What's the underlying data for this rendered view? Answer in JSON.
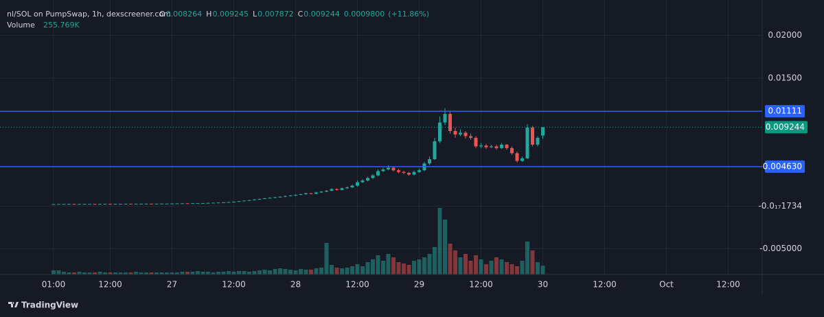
{
  "chart_data": {
    "type": "candlestick",
    "title": "nl/SOL on PumpSwap, 1h, dexscreener.com",
    "legend": [
      {
        "key": "O",
        "value": 0.008264
      },
      {
        "key": "H",
        "value": 0.009245
      },
      {
        "key": "L",
        "value": 0.007872
      },
      {
        "key": "C",
        "value": 0.009244
      }
    ],
    "change": {
      "value": 0.00098,
      "label": "0.0009800",
      "percent": "(+11.86%)"
    },
    "volume_legend": {
      "name": "Volume",
      "value": 255769,
      "label": "255.769K"
    },
    "x_labels": [
      "01:00",
      "12:00",
      "27",
      "12:00",
      "28",
      "12:00",
      "29",
      "12:00",
      "30",
      "12:00",
      "Oct",
      "12:00"
    ],
    "open": [
      0.00024,
      0.00024,
      0.00025,
      0.00025,
      0.00026,
      0.00025,
      0.00025,
      0.00026,
      0.00026,
      0.00025,
      0.00026,
      0.00027,
      0.00026,
      0.00027,
      0.00027,
      0.00028,
      0.00027,
      0.00028,
      0.00028,
      0.00029,
      0.00028,
      0.00029,
      0.0003,
      0.0003,
      0.00031,
      0.00032,
      0.00033,
      0.00032,
      0.00034,
      0.00035,
      0.00036,
      0.00038,
      0.0004,
      0.00042,
      0.00045,
      0.00048,
      0.00052,
      0.00058,
      0.00065,
      0.0007,
      0.00078,
      0.00085,
      0.00092,
      0.00098,
      0.00105,
      0.0011,
      0.00118,
      0.00125,
      0.00132,
      0.0014,
      0.0015,
      0.00145,
      0.0016,
      0.0017,
      0.0018,
      0.002,
      0.0019,
      0.0021,
      0.0022,
      0.0024,
      0.0028,
      0.003,
      0.0033,
      0.0036,
      0.0041,
      0.0043,
      0.0045,
      0.0042,
      0.004,
      0.0039,
      0.0037,
      0.004,
      0.0042,
      0.005,
      0.0055,
      0.0076,
      0.0098,
      0.0108,
      0.0088,
      0.0084,
      0.0086,
      0.0082,
      0.008,
      0.007,
      0.0071,
      0.0069,
      0.007,
      0.0068,
      0.0072,
      0.0068,
      0.0062,
      0.0053,
      0.0056,
      0.0092,
      0.0072,
      0.008264
    ],
    "high": [
      0.00025,
      0.00026,
      0.00026,
      0.00027,
      0.00027,
      0.00026,
      0.00027,
      0.00027,
      0.00027,
      0.00027,
      0.00028,
      0.00028,
      0.00028,
      0.00028,
      0.00029,
      0.00029,
      0.00029,
      0.00029,
      0.0003,
      0.0003,
      0.0003,
      0.00031,
      0.00031,
      0.00032,
      0.00033,
      0.00034,
      0.00034,
      0.00035,
      0.00036,
      0.00037,
      0.0004,
      0.00042,
      0.00044,
      0.00047,
      0.0005,
      0.00055,
      0.00061,
      0.00068,
      0.00074,
      0.00082,
      0.0009,
      0.00097,
      0.00104,
      0.0011,
      0.00116,
      0.00124,
      0.00131,
      0.00139,
      0.00147,
      0.00158,
      0.00156,
      0.00168,
      0.00178,
      0.00189,
      0.0021,
      0.00208,
      0.0022,
      0.00231,
      0.00252,
      0.003,
      0.00315,
      0.00345,
      0.00375,
      0.0043,
      0.0045,
      0.0048,
      0.0047,
      0.00435,
      0.00415,
      0.004,
      0.00415,
      0.0044,
      0.0052,
      0.0058,
      0.008,
      0.0105,
      0.0115,
      0.0112,
      0.0092,
      0.009,
      0.0088,
      0.0085,
      0.0082,
      0.0074,
      0.0073,
      0.0072,
      0.0072,
      0.0074,
      0.0073,
      0.007,
      0.0064,
      0.0058,
      0.0096,
      0.0094,
      0.0082,
      0.009245
    ],
    "low": [
      0.00023,
      0.00023,
      0.00024,
      0.00024,
      0.00024,
      0.00024,
      0.00024,
      0.00025,
      0.00024,
      0.00024,
      0.00025,
      0.00025,
      0.00025,
      0.00026,
      0.00026,
      0.00026,
      0.00026,
      0.00027,
      0.00027,
      0.00027,
      0.00027,
      0.00028,
      0.00029,
      0.00029,
      0.0003,
      0.00031,
      0.00031,
      0.00031,
      0.00033,
      0.00034,
      0.00035,
      0.00037,
      0.00039,
      0.00041,
      0.00043,
      0.00046,
      0.0005,
      0.00056,
      0.00063,
      0.00068,
      0.00075,
      0.00082,
      0.00089,
      0.00095,
      0.00101,
      0.00106,
      0.00114,
      0.0012,
      0.00127,
      0.00135,
      0.00139,
      0.0014,
      0.00154,
      0.00164,
      0.00173,
      0.00182,
      0.00183,
      0.00202,
      0.00211,
      0.0023,
      0.0027,
      0.0029,
      0.0032,
      0.0035,
      0.004,
      0.0042,
      0.00405,
      0.00385,
      0.00375,
      0.00355,
      0.0036,
      0.0039,
      0.0041,
      0.0048,
      0.0054,
      0.0074,
      0.0095,
      0.0085,
      0.008,
      0.0082,
      0.0079,
      0.0078,
      0.0068,
      0.0068,
      0.0067,
      0.0068,
      0.0066,
      0.0067,
      0.0066,
      0.006,
      0.0051,
      0.0052,
      0.0055,
      0.007,
      0.007,
      0.007872
    ],
    "close": [
      0.00024,
      0.00025,
      0.00025,
      0.00026,
      0.00025,
      0.00025,
      0.00026,
      0.00026,
      0.00025,
      0.00026,
      0.00027,
      0.00026,
      0.00027,
      0.00027,
      0.00028,
      0.00027,
      0.00028,
      0.00028,
      0.00029,
      0.00028,
      0.00029,
      0.0003,
      0.0003,
      0.00031,
      0.00032,
      0.00033,
      0.00032,
      0.00034,
      0.00035,
      0.00036,
      0.00038,
      0.0004,
      0.00042,
      0.00045,
      0.00048,
      0.00052,
      0.00058,
      0.00065,
      0.0007,
      0.00078,
      0.00085,
      0.00092,
      0.00098,
      0.00105,
      0.0011,
      0.00118,
      0.00125,
      0.00132,
      0.0014,
      0.0015,
      0.00145,
      0.0016,
      0.0017,
      0.0018,
      0.002,
      0.0019,
      0.0021,
      0.0022,
      0.0024,
      0.0028,
      0.003,
      0.0033,
      0.0036,
      0.0041,
      0.0043,
      0.0045,
      0.0042,
      0.004,
      0.0039,
      0.0037,
      0.004,
      0.0042,
      0.005,
      0.0055,
      0.0076,
      0.0098,
      0.0108,
      0.0088,
      0.0084,
      0.0086,
      0.0082,
      0.008,
      0.007,
      0.0071,
      0.0069,
      0.007,
      0.0068,
      0.0072,
      0.0068,
      0.0062,
      0.0053,
      0.0056,
      0.0092,
      0.0072,
      0.008,
      0.009244
    ],
    "volume": [
      120000,
      120000,
      80000,
      60000,
      60000,
      80000,
      60000,
      60000,
      60000,
      80000,
      60000,
      60000,
      60000,
      60000,
      60000,
      60000,
      80000,
      60000,
      60000,
      60000,
      60000,
      60000,
      60000,
      60000,
      60000,
      80000,
      80000,
      80000,
      100000,
      80000,
      80000,
      60000,
      80000,
      80000,
      100000,
      80000,
      100000,
      100000,
      80000,
      100000,
      120000,
      140000,
      120000,
      160000,
      180000,
      160000,
      140000,
      120000,
      160000,
      140000,
      140000,
      180000,
      200000,
      920000,
      280000,
      200000,
      180000,
      200000,
      240000,
      300000,
      240000,
      360000,
      440000,
      560000,
      400000,
      600000,
      500000,
      360000,
      320000,
      280000,
      400000,
      440000,
      500000,
      600000,
      800000,
      1940000,
      1600000,
      900000,
      700000,
      500000,
      600000,
      400000,
      560000,
      440000,
      300000,
      400000,
      500000,
      440000,
      360000,
      300000,
      240000,
      400000,
      960000,
      700000,
      360000,
      255769
    ],
    "up_color": "#26a69a",
    "down_color": "#ef5350",
    "ylim": [
      -0.008,
      0.0235
    ],
    "yticks": [
      {
        "value": 0.02,
        "label": "0.02000"
      },
      {
        "value": 0.015,
        "label": "0.01500"
      },
      {
        "value": -1.734e-18,
        "label": "-0.0₁₇1734"
      },
      {
        "value": -0.005,
        "label": "-0.005000"
      }
    ],
    "price_lines": [
      {
        "value": 0.01111,
        "label": "0.01111"
      },
      {
        "value": 0.00463,
        "label": "0.004630"
      }
    ],
    "last_price": {
      "value": 0.009244,
      "label": "0.009244"
    },
    "grid": true,
    "footer": "TradingView"
  }
}
